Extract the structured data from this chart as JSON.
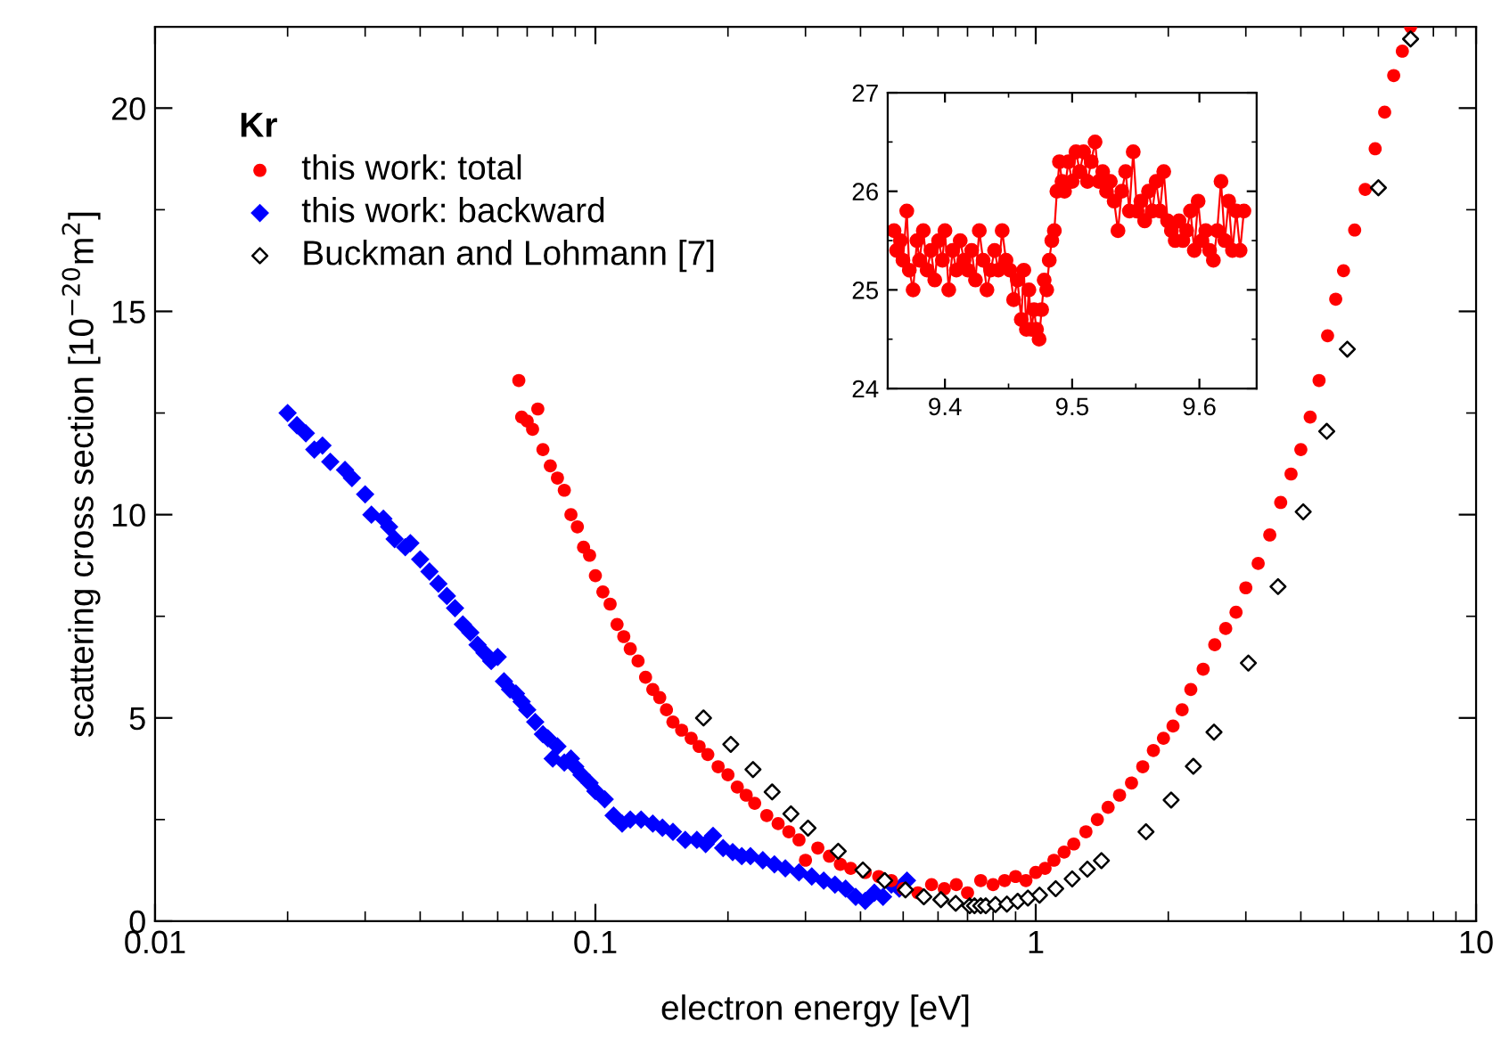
{
  "chart_data": [
    {
      "type": "scatter",
      "xlabel": "electron energy [eV]",
      "ylabel": "scattering cross section [10$^{−20}$m$^{2}$]",
      "legend_title": "Kr",
      "legend": "top left",
      "log": "x",
      "xlim": [
        0.01,
        10
      ],
      "ylim": [
        0,
        22
      ],
      "xticks": [
        0.01,
        0.1,
        1,
        10
      ],
      "yticks": [
        0,
        5,
        10,
        15,
        20
      ],
      "grid": false,
      "series": [
        {
          "name": "this work: total",
          "color": "#ff0000",
          "marker": "circle",
          "x": [
            0.067,
            0.068,
            0.07,
            0.072,
            0.074,
            0.076,
            0.079,
            0.082,
            0.085,
            0.088,
            0.091,
            0.094,
            0.097,
            0.1,
            0.104,
            0.108,
            0.112,
            0.116,
            0.12,
            0.125,
            0.13,
            0.135,
            0.14,
            0.145,
            0.15,
            0.157,
            0.165,
            0.172,
            0.18,
            0.19,
            0.2,
            0.21,
            0.22,
            0.23,
            0.245,
            0.26,
            0.275,
            0.29,
            0.3,
            0.32,
            0.34,
            0.36,
            0.38,
            0.41,
            0.44,
            0.47,
            0.5,
            0.54,
            0.58,
            0.62,
            0.66,
            0.7,
            0.75,
            0.8,
            0.85,
            0.9,
            0.95,
            1.0,
            1.05,
            1.1,
            1.16,
            1.22,
            1.3,
            1.38,
            1.46,
            1.55,
            1.65,
            1.75,
            1.85,
            1.95,
            2.05,
            2.15,
            2.25,
            2.4,
            2.55,
            2.7,
            2.85,
            3.0,
            3.2,
            3.4,
            3.6,
            3.8,
            4.0,
            4.2,
            4.4,
            4.6,
            4.8,
            5.0,
            5.3,
            5.6,
            5.9,
            6.2,
            6.5,
            6.8,
            7.1
          ],
          "values": [
            13.3,
            12.4,
            12.3,
            12.1,
            12.6,
            11.6,
            11.2,
            10.9,
            10.6,
            10.0,
            9.7,
            9.2,
            9.0,
            8.5,
            8.1,
            7.8,
            7.3,
            7.0,
            6.7,
            6.4,
            6.0,
            5.7,
            5.5,
            5.2,
            4.9,
            4.7,
            4.5,
            4.3,
            4.1,
            3.8,
            3.6,
            3.3,
            3.1,
            2.9,
            2.6,
            2.4,
            2.2,
            2.0,
            1.5,
            1.8,
            1.6,
            1.4,
            1.3,
            1.2,
            1.1,
            1.0,
            0.8,
            0.7,
            0.9,
            0.8,
            0.9,
            0.7,
            1.0,
            0.9,
            1.0,
            1.1,
            1.0,
            1.2,
            1.3,
            1.5,
            1.7,
            1.9,
            2.2,
            2.5,
            2.8,
            3.1,
            3.4,
            3.8,
            4.2,
            4.5,
            4.8,
            5.2,
            5.7,
            6.2,
            6.8,
            7.2,
            7.6,
            8.2,
            8.8,
            9.5,
            10.3,
            11.0,
            11.6,
            12.4,
            13.3,
            14.4,
            15.3,
            16.0,
            17.0,
            18.0,
            19.0,
            19.9,
            20.8,
            21.4,
            22.0
          ]
        },
        {
          "name": "this work: backward",
          "color": "#0000ff",
          "marker": "diamond",
          "x": [
            0.02,
            0.021,
            0.022,
            0.023,
            0.024,
            0.025,
            0.027,
            0.028,
            0.03,
            0.031,
            0.033,
            0.034,
            0.035,
            0.037,
            0.038,
            0.04,
            0.042,
            0.044,
            0.046,
            0.048,
            0.05,
            0.052,
            0.054,
            0.056,
            0.058,
            0.06,
            0.062,
            0.064,
            0.066,
            0.068,
            0.07,
            0.073,
            0.076,
            0.078,
            0.08,
            0.082,
            0.085,
            0.088,
            0.09,
            0.093,
            0.097,
            0.1,
            0.105,
            0.11,
            0.115,
            0.12,
            0.127,
            0.135,
            0.142,
            0.15,
            0.16,
            0.17,
            0.178,
            0.185,
            0.195,
            0.205,
            0.215,
            0.225,
            0.24,
            0.255,
            0.27,
            0.29,
            0.31,
            0.33,
            0.35,
            0.37,
            0.39,
            0.41,
            0.43,
            0.45,
            0.47,
            0.49,
            0.51
          ],
          "values": [
            12.5,
            12.2,
            12.0,
            11.6,
            11.7,
            11.3,
            11.1,
            10.9,
            10.5,
            10.0,
            9.9,
            9.7,
            9.4,
            9.2,
            9.3,
            8.9,
            8.6,
            8.3,
            8.0,
            7.7,
            7.3,
            7.1,
            6.8,
            6.6,
            6.4,
            6.5,
            5.9,
            5.7,
            5.6,
            5.4,
            5.2,
            4.9,
            4.6,
            4.5,
            4.0,
            4.3,
            3.9,
            4.0,
            3.8,
            3.6,
            3.4,
            3.2,
            3.0,
            2.6,
            2.4,
            2.5,
            2.5,
            2.4,
            2.3,
            2.2,
            2.0,
            2.0,
            1.9,
            2.1,
            1.8,
            1.7,
            1.6,
            1.6,
            1.5,
            1.4,
            1.3,
            1.2,
            1.1,
            1.0,
            0.9,
            0.8,
            0.6,
            0.5,
            0.7,
            0.6,
            0.9,
            0.8,
            1.0
          ]
        },
        {
          "name": "Buckman and Lohmann [7]",
          "color": "#000000",
          "marker": "diamond",
          "x": [
            0.176,
            0.203,
            0.228,
            0.252,
            0.278,
            0.304,
            0.356,
            0.405,
            0.454,
            0.506,
            0.557,
            0.609,
            0.658,
            0.708,
            0.726,
            0.75,
            0.77,
            0.81,
            0.86,
            0.91,
            0.96,
            1.02,
            1.11,
            1.21,
            1.31,
            1.41,
            1.78,
            2.03,
            2.28,
            2.54,
            3.04,
            3.55,
            4.05,
            4.58,
            5.1,
            6.0,
            7.1
          ],
          "values": [
            5.0,
            4.35,
            3.73,
            3.18,
            2.64,
            2.29,
            1.72,
            1.26,
            1.0,
            0.77,
            0.6,
            0.53,
            0.44,
            0.38,
            0.38,
            0.38,
            0.38,
            0.41,
            0.42,
            0.49,
            0.57,
            0.64,
            0.8,
            1.04,
            1.28,
            1.49,
            2.2,
            2.98,
            3.81,
            4.65,
            6.35,
            8.23,
            10.07,
            12.05,
            14.07,
            18.04,
            21.7
          ]
        }
      ]
    },
    {
      "type": "line",
      "marker": "circle",
      "xlim": [
        9.355,
        9.645
      ],
      "ylim": [
        24,
        27
      ],
      "xticks": [
        9.4,
        9.5,
        9.6
      ],
      "yticks": [
        24,
        25,
        26,
        27
      ],
      "grid": false,
      "series": [
        {
          "color": "#ff0000",
          "x": [
            9.36,
            9.362,
            9.365,
            9.367,
            9.37,
            9.372,
            9.375,
            9.378,
            9.38,
            9.383,
            9.386,
            9.389,
            9.392,
            9.395,
            9.398,
            9.4,
            9.403,
            9.406,
            9.409,
            9.412,
            9.415,
            9.418,
            9.421,
            9.424,
            9.427,
            9.43,
            9.433,
            9.436,
            9.439,
            9.442,
            9.445,
            9.448,
            9.451,
            9.454,
            9.457,
            9.46,
            9.462,
            9.464,
            9.466,
            9.468,
            9.47,
            9.472,
            9.474,
            9.476,
            9.478,
            9.48,
            9.482,
            9.484,
            9.486,
            9.488,
            9.49,
            9.492,
            9.494,
            9.497,
            9.5,
            9.503,
            9.506,
            9.509,
            9.512,
            9.515,
            9.518,
            9.521,
            9.524,
            9.527,
            9.53,
            9.533,
            9.536,
            9.539,
            9.542,
            9.545,
            9.548,
            9.551,
            9.554,
            9.557,
            9.56,
            9.563,
            9.566,
            9.569,
            9.572,
            9.575,
            9.578,
            9.581,
            9.584,
            9.587,
            9.59,
            9.593,
            9.596,
            9.599,
            9.602,
            9.605,
            9.608,
            9.611,
            9.614,
            9.617,
            9.62,
            9.623,
            9.626,
            9.629,
            9.632,
            9.635
          ],
          "values": [
            25.6,
            25.4,
            25.5,
            25.3,
            25.8,
            25.2,
            25.0,
            25.5,
            25.3,
            25.6,
            25.2,
            25.4,
            25.1,
            25.5,
            25.3,
            25.6,
            25.0,
            25.4,
            25.2,
            25.5,
            25.3,
            25.2,
            25.4,
            25.1,
            25.6,
            25.3,
            25.0,
            25.2,
            25.4,
            25.2,
            25.6,
            25.3,
            25.2,
            24.9,
            25.1,
            24.7,
            25.2,
            24.6,
            25.0,
            24.6,
            24.8,
            24.6,
            24.5,
            24.8,
            25.1,
            25.0,
            25.3,
            25.5,
            25.6,
            26.0,
            26.3,
            26.1,
            26.0,
            26.3,
            26.1,
            26.4,
            26.2,
            26.4,
            26.1,
            26.3,
            26.5,
            26.1,
            26.2,
            26.0,
            26.1,
            25.9,
            25.6,
            26.0,
            26.2,
            25.8,
            26.4,
            25.8,
            25.9,
            25.7,
            26.0,
            25.8,
            26.1,
            25.8,
            26.2,
            25.7,
            25.6,
            25.5,
            25.7,
            25.5,
            25.6,
            25.8,
            25.4,
            25.9,
            25.5,
            25.6,
            25.4,
            25.3,
            25.6,
            26.1,
            25.5,
            25.9,
            25.4,
            25.8,
            25.4,
            25.8
          ]
        }
      ]
    }
  ]
}
